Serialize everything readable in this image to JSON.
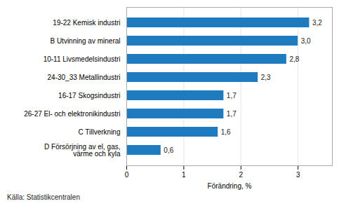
{
  "chart_data": {
    "type": "bar",
    "orientation": "horizontal",
    "categories": [
      "D Försörjning av el, gas,\nvärme och kyla",
      "C Tillverkning",
      "26-27 El- och elektronikindustri",
      "16-17 Skogsindustri",
      "24-30_33 Metallindustri",
      "10-11 Livsmedelsindustri",
      "B Utvinning av mineral",
      "19-22 Kemisk industri"
    ],
    "values": [
      0.6,
      1.6,
      1.7,
      1.7,
      2.3,
      2.8,
      3.0,
      3.2
    ],
    "value_labels": [
      "0,6",
      "1,6",
      "1,7",
      "1,7",
      "2,3",
      "2,8",
      "3,0",
      "3,2"
    ],
    "data_labels": true,
    "color": "#1f7bbf",
    "xlabel": "Förändring, %",
    "xlim": [
      0,
      3.6
    ],
    "xticks": [
      0,
      1,
      2,
      3
    ],
    "grid": true,
    "annotations": [
      "Källa: Statistikcentralen"
    ]
  }
}
